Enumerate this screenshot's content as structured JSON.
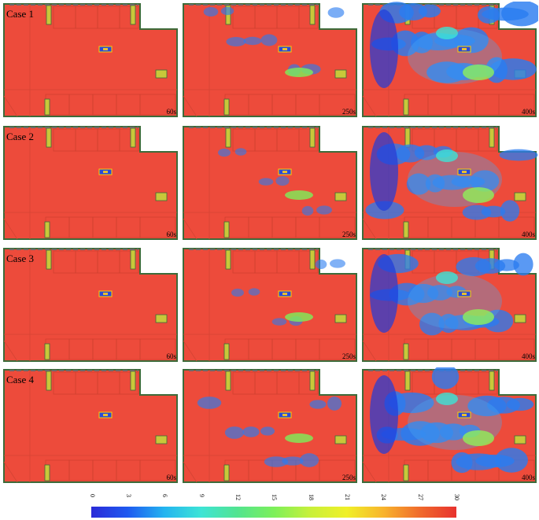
{
  "figure": {
    "rows": [
      {
        "case": "Case 1",
        "times": [
          "60s",
          "250s",
          "400s"
        ]
      },
      {
        "case": "Case 2",
        "times": [
          "60s",
          "250s",
          "400s"
        ]
      },
      {
        "case": "Case 3",
        "times": [
          "60s",
          "250s",
          "400s"
        ]
      },
      {
        "case": "Case 4",
        "times": [
          "60s",
          "250s",
          "400s"
        ]
      }
    ]
  },
  "colorbar": {
    "ticks": [
      "0",
      "3",
      "6",
      "9",
      "12",
      "15",
      "18",
      "21",
      "24",
      "27",
      "30"
    ],
    "min": 0,
    "max": 30,
    "colors": [
      "#2a2ad8",
      "#1e5af0",
      "#23b4f0",
      "#3de4d6",
      "#52e490",
      "#7cf05a",
      "#c8f03a",
      "#f0f028",
      "#f8b42c",
      "#f06a2c",
      "#e8322e"
    ]
  },
  "colors": {
    "field": "#ed4b3b",
    "wall": "#3d6b3a",
    "low": "#1e3cdc",
    "door": "#c8c83a"
  }
}
